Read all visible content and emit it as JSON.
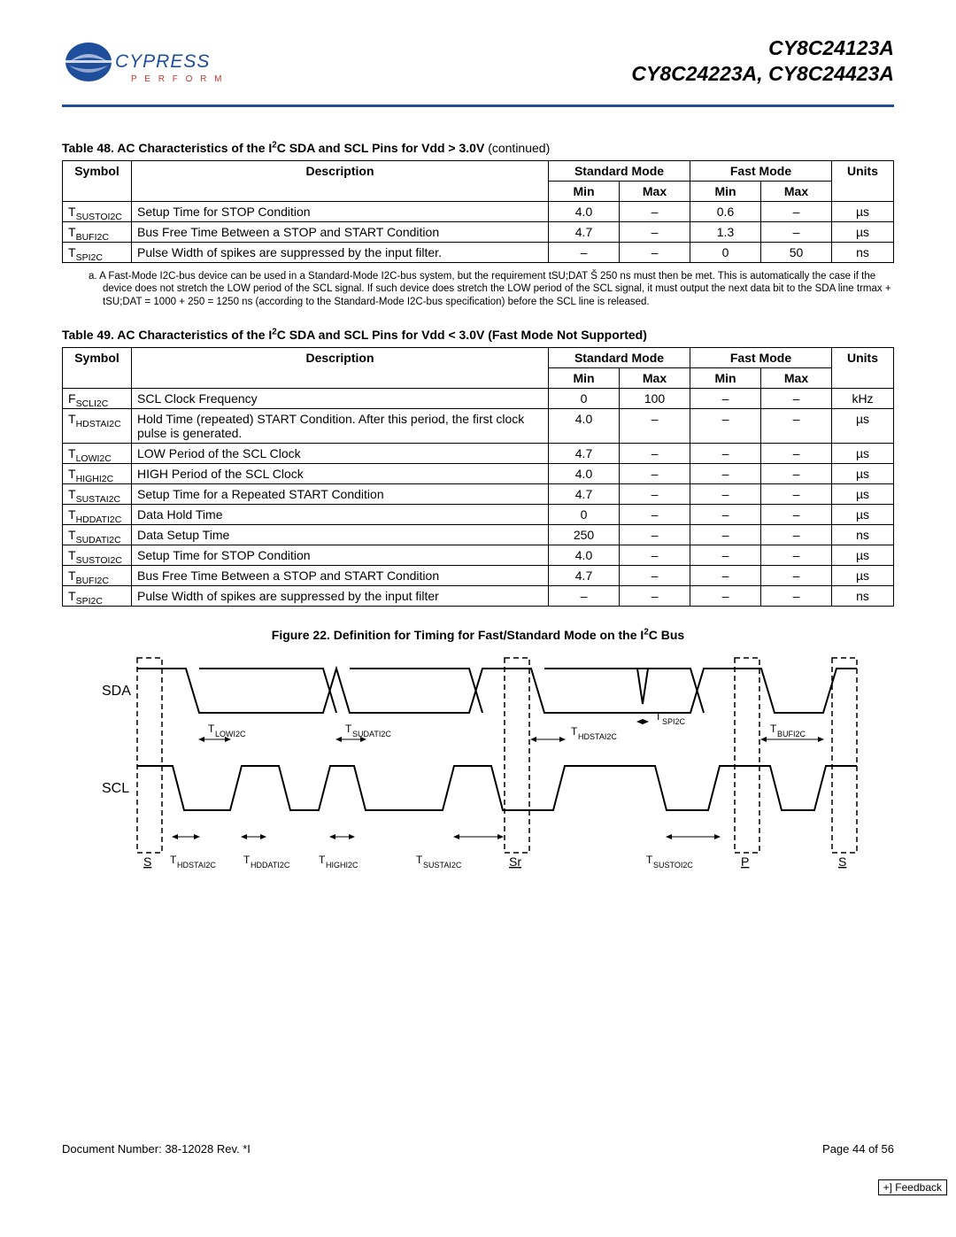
{
  "header": {
    "logo_brand": "CYPRESS",
    "logo_tagline": "P E R F O R M",
    "title_line1": "CY8C24123A",
    "title_line2": "CY8C24223A, CY8C24423A"
  },
  "table48": {
    "title_prefix": "Table 48.  AC Characteristics of the I",
    "title_sup": "2",
    "title_suffix": "C SDA and SCL Pins for Vdd > 3.0V",
    "title_cont": "  (continued)",
    "headers": {
      "symbol": "Symbol",
      "description": "Description",
      "std": "Standard Mode",
      "fast": "Fast Mode",
      "min": "Min",
      "max": "Max",
      "units": "Units"
    },
    "rows": [
      {
        "sym_base": "T",
        "sym_sub": "SUSTOI2C",
        "desc": "Setup Time for STOP Condition",
        "smin": "4.0",
        "smax": "–",
        "fmin": "0.6",
        "fmax": "–",
        "units": "µs"
      },
      {
        "sym_base": "T",
        "sym_sub": "BUFI2C",
        "desc": "Bus Free Time Between a STOP and START Condition",
        "smin": "4.7",
        "smax": "–",
        "fmin": "1.3",
        "fmax": "–",
        "units": "µs"
      },
      {
        "sym_base": "T",
        "sym_sub": "SPI2C",
        "desc": "Pulse Width of spikes are suppressed by the input filter.",
        "smin": "–",
        "smax": "–",
        "fmin": "0",
        "fmax": "50",
        "units": "ns"
      }
    ]
  },
  "footnote_a": "a.   A Fast-Mode I2C-bus device can be used in a Standard-Mode I2C-bus system, but the requirement tSU;DAT Š 250 ns must then be met. This is automatically the case if the device does not stretch the LOW period of the SCL signal. If such device does stretch the LOW period of the SCL signal, it must output the next data bit to the SDA line trmax + tSU;DAT = 1000 + 250 = 1250 ns (according to the Standard-Mode I2C-bus specification) before the SCL line is released.",
  "table49": {
    "title_prefix": "Table 49.  AC Characteristics of the I",
    "title_sup": "2",
    "title_mid": "C SDA and SCL Pins for Vdd ",
    "title_lt": "<",
    "title_suffix": " 3.0V (Fast Mode Not Supported)",
    "headers": {
      "symbol": "Symbol",
      "description": "Description",
      "std": "Standard Mode",
      "fast": "Fast Mode",
      "min": "Min",
      "max": "Max",
      "units": "Units"
    },
    "rows": [
      {
        "sym_base": "F",
        "sym_sub": "SCLI2C",
        "desc": "SCL Clock Frequency",
        "smin": "0",
        "smax": "100",
        "fmin": "–",
        "fmax": "–",
        "units": "kHz"
      },
      {
        "sym_base": "T",
        "sym_sub": "HDSTAI2C",
        "desc": "Hold Time (repeated) START Condition. After this period, the first clock pulse is generated.",
        "smin": "4.0",
        "smax": "–",
        "fmin": "–",
        "fmax": "–",
        "units": "µs"
      },
      {
        "sym_base": "T",
        "sym_sub": "LOWI2C",
        "desc": "LOW Period of the SCL Clock",
        "smin": "4.7",
        "smax": "–",
        "fmin": "–",
        "fmax": "–",
        "units": "µs"
      },
      {
        "sym_base": "T",
        "sym_sub": "HIGHI2C",
        "desc": "HIGH Period of the SCL Clock",
        "smin": "4.0",
        "smax": "–",
        "fmin": "–",
        "fmax": "–",
        "units": "µs"
      },
      {
        "sym_base": "T",
        "sym_sub": "SUSTAI2C",
        "desc": "Setup Time for a Repeated START Condition",
        "smin": "4.7",
        "smax": "–",
        "fmin": "–",
        "fmax": "–",
        "units": "µs"
      },
      {
        "sym_base": "T",
        "sym_sub": "HDDATI2C",
        "desc": "Data Hold Time",
        "smin": "0",
        "smax": "–",
        "fmin": "–",
        "fmax": "–",
        "units": "µs"
      },
      {
        "sym_base": "T",
        "sym_sub": "SUDATI2C",
        "desc": "Data Setup Time",
        "smin": "250",
        "smax": "–",
        "fmin": "–",
        "fmax": "–",
        "units": "ns"
      },
      {
        "sym_base": "T",
        "sym_sub": "SUSTOI2C",
        "desc": "Setup Time for STOP Condition",
        "smin": "4.0",
        "smax": "–",
        "fmin": "–",
        "fmax": "–",
        "units": "µs"
      },
      {
        "sym_base": "T",
        "sym_sub": "BUFI2C",
        "desc": "Bus Free Time Between a STOP and START Condition",
        "smin": "4.7",
        "smax": "–",
        "fmin": "–",
        "fmax": "–",
        "units": "µs"
      },
      {
        "sym_base": "T",
        "sym_sub": "SPI2C",
        "desc": "Pulse Width of spikes are suppressed by the input filter",
        "smin": "–",
        "smax": "–",
        "fmin": "–",
        "fmax": "–",
        "units": "ns"
      }
    ]
  },
  "figure": {
    "title_prefix": "Figure 22.  Definition for Timing for Fast/Standard Mode on the I",
    "title_sup": "2",
    "title_suffix": "C Bus",
    "sda_label": "SDA",
    "scl_label": "SCL",
    "markers": {
      "s": "S",
      "sr": "Sr",
      "p": "P"
    },
    "timing_labels": {
      "t_low": "LOWI2C",
      "t_sudat": "SUDATI2C",
      "t_hdsta_top": "HDSTAI2C",
      "t_sp": "SPI2C",
      "t_buf": "BUFI2C",
      "t_hdsta_bot": "HDSTAI2C",
      "t_hddat": "HDDATI2C",
      "t_high": "HIGHI2C",
      "t_susta": "SUSTAI2C",
      "t_susto": "SUSTOI2C"
    }
  },
  "footer": {
    "left": "Document Number: 38-12028  Rev. *I",
    "right": "Page 44 of 56",
    "feedback": "+] Feedback"
  },
  "colors": {
    "rule": "#1f4e9c",
    "logo_blue": "#1f4e9c",
    "logo_red": "#c0392b",
    "text": "#000000",
    "bg": "#ffffff"
  }
}
